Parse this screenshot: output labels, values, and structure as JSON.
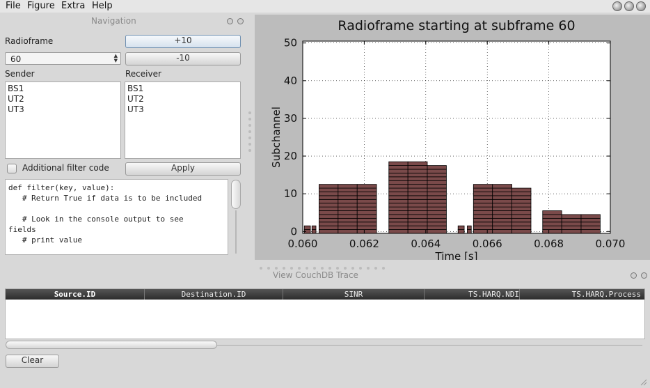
{
  "menubar": {
    "items": [
      "File",
      "Figure",
      "Extra",
      "Help"
    ]
  },
  "navigation": {
    "title": "Navigation",
    "radioframe_label": "Radioframe",
    "radioframe_value": "60",
    "plus_button": "+10",
    "minus_button": "-10",
    "sender_label": "Sender",
    "receiver_label": "Receiver",
    "senders": [
      "BS1",
      "UT2",
      "UT3"
    ],
    "receivers": [
      "BS1",
      "UT2",
      "UT3"
    ],
    "filter_checkbox_label": "Additional filter code",
    "apply_button": "Apply",
    "code_lines": [
      "def filter(key, value):",
      "   # Return True if data is to be included",
      "",
      "   # Look in the console output to see",
      "fields",
      "   # print value"
    ]
  },
  "chart_data": {
    "type": "bar",
    "title": "Radioframe starting at subframe 60",
    "xlabel": "Time [s]",
    "ylabel": "Subchannel",
    "xlim": [
      0.06,
      0.07
    ],
    "ylim": [
      -0.5,
      50.5
    ],
    "xticks": [
      "0.060",
      "0.062",
      "0.064",
      "0.066",
      "0.068",
      "0.070"
    ],
    "yticks": [
      "0",
      "10",
      "20",
      "30",
      "40",
      "50"
    ],
    "grid": true,
    "bar_color": "#7a4a4a",
    "bars": [
      {
        "x0": 0.06005,
        "x1": 0.06025,
        "y": 1
      },
      {
        "x0": 0.0603,
        "x1": 0.06043,
        "y": 1
      },
      {
        "x0": 0.06053,
        "x1": 0.06115,
        "y": 12
      },
      {
        "x0": 0.06115,
        "x1": 0.06177,
        "y": 12
      },
      {
        "x0": 0.06177,
        "x1": 0.0624,
        "y": 12
      },
      {
        "x0": 0.0628,
        "x1": 0.06342,
        "y": 18
      },
      {
        "x0": 0.06342,
        "x1": 0.06405,
        "y": 18
      },
      {
        "x0": 0.06405,
        "x1": 0.06467,
        "y": 17
      },
      {
        "x0": 0.06505,
        "x1": 0.06525,
        "y": 1
      },
      {
        "x0": 0.06535,
        "x1": 0.06548,
        "y": 1
      },
      {
        "x0": 0.06555,
        "x1": 0.06617,
        "y": 12
      },
      {
        "x0": 0.06617,
        "x1": 0.0668,
        "y": 12
      },
      {
        "x0": 0.0668,
        "x1": 0.06742,
        "y": 11
      },
      {
        "x0": 0.0678,
        "x1": 0.06842,
        "y": 5
      },
      {
        "x0": 0.06842,
        "x1": 0.06905,
        "y": 4
      },
      {
        "x0": 0.06905,
        "x1": 0.06967,
        "y": 4
      }
    ]
  },
  "trace": {
    "title": "View CouchDB Trace",
    "columns": [
      "Source.ID",
      "Destination.ID",
      "SINR",
      "TS.HARQ.NDI",
      "TS.HARQ.Process"
    ],
    "rows": [],
    "clear_button": "Clear"
  }
}
